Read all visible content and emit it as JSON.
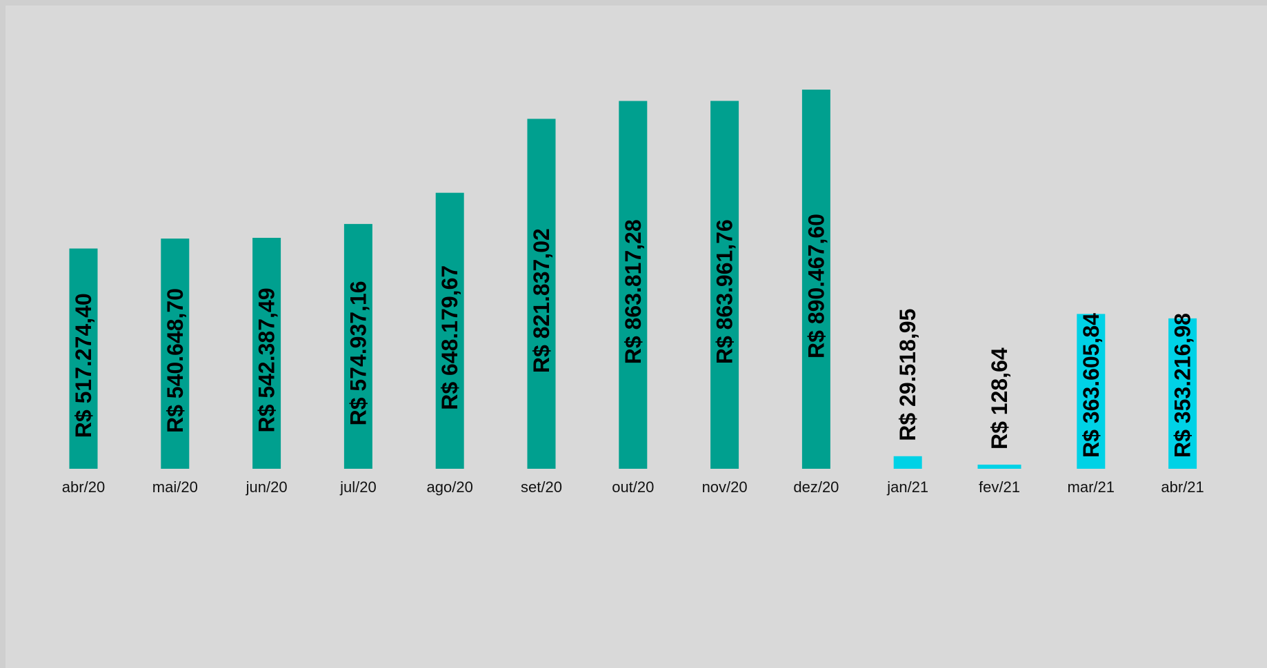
{
  "chart_data": {
    "type": "bar",
    "categories": [
      "abr/20",
      "mai/20",
      "jun/20",
      "jul/20",
      "ago/20",
      "set/20",
      "out/20",
      "nov/20",
      "dez/20",
      "jan/21",
      "fev/21",
      "mar/21",
      "abr/21"
    ],
    "values": [
      517274.4,
      540648.7,
      542387.49,
      574937.16,
      648179.67,
      821837.02,
      863817.28,
      863961.76,
      890467.6,
      29518.95,
      128.64,
      363605.84,
      353216.98
    ],
    "data_labels": [
      "R$ 517.274,40",
      "R$ 540.648,70",
      "R$ 542.387,49",
      "R$ 574.937,16",
      "R$ 648.179,67",
      "R$ 821.837,02",
      "R$ 863.817,28",
      "R$ 863.961,76",
      "R$ 890.467,60",
      "R$ 29.518,95",
      "R$ 128,64",
      "R$ 363.605,84",
      "R$ 353.216,98"
    ],
    "bar_colors": [
      "#00a08f",
      "#00a08f",
      "#00a08f",
      "#00a08f",
      "#00a08f",
      "#00a08f",
      "#00a08f",
      "#00a08f",
      "#00a08f",
      "#00d2e6",
      "#00d2e6",
      "#00d2e6",
      "#00d2e6"
    ],
    "title": "",
    "xlabel": "",
    "ylabel": "",
    "ylim": [
      0,
      890467.6
    ],
    "grid": false,
    "legend": "none"
  }
}
